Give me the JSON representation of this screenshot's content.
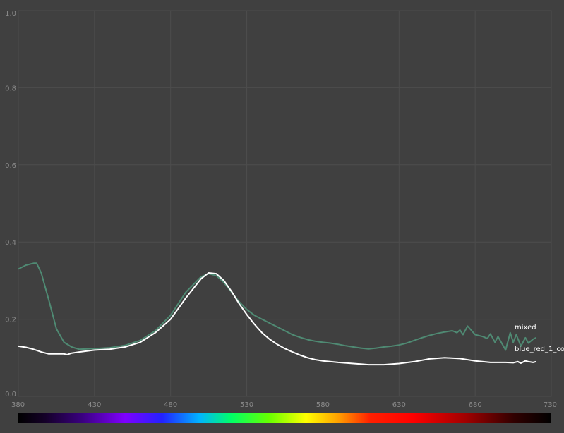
{
  "chart_data": {
    "type": "line",
    "xlim": [
      380,
      730
    ],
    "ylim": [
      0,
      1
    ],
    "x_ticks": [
      "380",
      "430",
      "480",
      "530",
      "580",
      "630",
      "680",
      "730"
    ],
    "y_ticks": [
      "0.0",
      "0.2",
      "0.4",
      "0.6",
      "0.8",
      "1.0"
    ],
    "grid": true,
    "legend": "inline labels at right end of series",
    "spectrum_bar": true,
    "colors": {
      "background": "#404040",
      "grid": "#4d4d4d",
      "tick_label": "#8a8a8a",
      "mixed": "#4f8a73",
      "blue_red_1_co": "#ffffff",
      "series_label": "#ffffff"
    },
    "series": [
      {
        "name": "mixed",
        "x": [
          380,
          385,
          390,
          392,
          395,
          400,
          405,
          410,
          415,
          420,
          430,
          440,
          450,
          460,
          470,
          480,
          490,
          500,
          505,
          510,
          515,
          520,
          525,
          530,
          535,
          540,
          545,
          550,
          555,
          560,
          565,
          570,
          575,
          580,
          585,
          590,
          595,
          600,
          605,
          610,
          615,
          620,
          625,
          630,
          635,
          640,
          645,
          650,
          655,
          660,
          665,
          668,
          670,
          672,
          675,
          680,
          685,
          688,
          690,
          693,
          695,
          700,
          703,
          705,
          707,
          710,
          713,
          715,
          718,
          720
        ],
        "y": [
          0.33,
          0.34,
          0.345,
          0.345,
          0.32,
          0.25,
          0.175,
          0.14,
          0.128,
          0.122,
          0.124,
          0.126,
          0.132,
          0.145,
          0.17,
          0.21,
          0.27,
          0.31,
          0.318,
          0.313,
          0.295,
          0.27,
          0.245,
          0.225,
          0.21,
          0.2,
          0.19,
          0.18,
          0.17,
          0.16,
          0.153,
          0.147,
          0.143,
          0.14,
          0.138,
          0.135,
          0.131,
          0.128,
          0.125,
          0.123,
          0.125,
          0.128,
          0.13,
          0.133,
          0.138,
          0.145,
          0.152,
          0.158,
          0.163,
          0.167,
          0.17,
          0.165,
          0.172,
          0.16,
          0.182,
          0.16,
          0.155,
          0.15,
          0.162,
          0.14,
          0.155,
          0.12,
          0.165,
          0.14,
          0.16,
          0.13,
          0.152,
          0.138,
          0.148,
          0.152
        ]
      },
      {
        "name": "blue_red_1_co",
        "x": [
          380,
          385,
          390,
          395,
          400,
          405,
          410,
          412,
          415,
          420,
          430,
          440,
          450,
          460,
          470,
          480,
          490,
          500,
          505,
          510,
          515,
          520,
          525,
          530,
          535,
          540,
          545,
          550,
          555,
          560,
          565,
          570,
          575,
          580,
          590,
          600,
          610,
          620,
          630,
          640,
          650,
          660,
          670,
          680,
          690,
          700,
          705,
          708,
          710,
          713,
          715,
          718,
          720
        ],
        "y": [
          0.13,
          0.127,
          0.122,
          0.115,
          0.11,
          0.11,
          0.11,
          0.108,
          0.112,
          0.115,
          0.12,
          0.122,
          0.128,
          0.14,
          0.165,
          0.2,
          0.255,
          0.305,
          0.32,
          0.318,
          0.3,
          0.272,
          0.24,
          0.212,
          0.187,
          0.165,
          0.148,
          0.135,
          0.124,
          0.115,
          0.107,
          0.1,
          0.095,
          0.092,
          0.088,
          0.085,
          0.082,
          0.082,
          0.085,
          0.09,
          0.097,
          0.1,
          0.098,
          0.092,
          0.088,
          0.088,
          0.087,
          0.09,
          0.086,
          0.092,
          0.09,
          0.088,
          0.09
        ]
      }
    ]
  }
}
